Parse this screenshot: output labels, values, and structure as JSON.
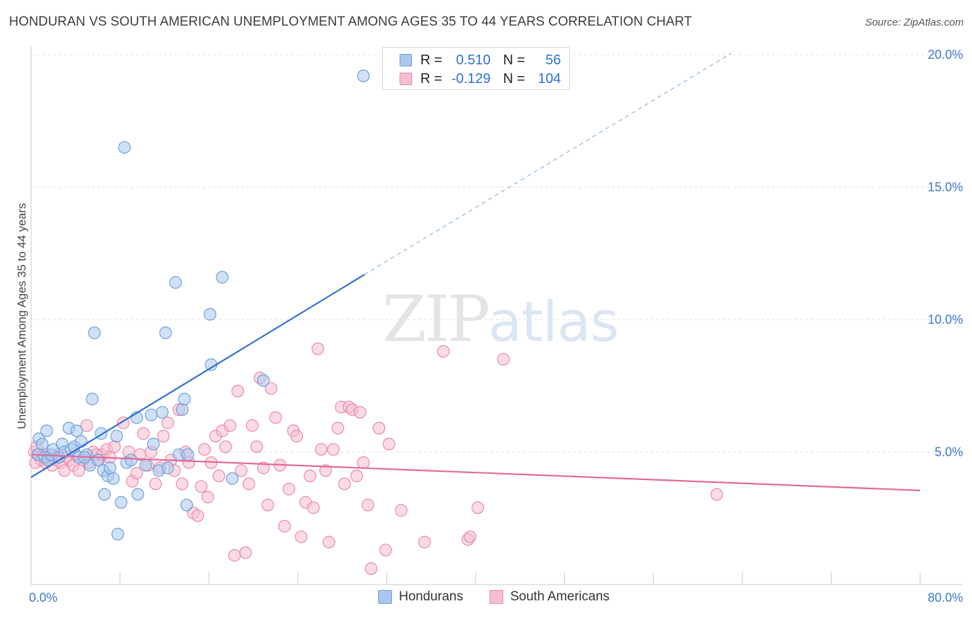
{
  "header": {
    "title": "HONDURAN VS SOUTH AMERICAN UNEMPLOYMENT AMONG AGES 35 TO 44 YEARS CORRELATION CHART",
    "source": "Source: ZipAtlas.com"
  },
  "watermark": {
    "zip": "ZIP",
    "atlas": "atlas"
  },
  "legend": {
    "rows": [
      {
        "r_label": "R =",
        "r_value": "0.510",
        "n_label": "N =",
        "n_value": "56"
      },
      {
        "r_label": "R =",
        "r_value": "-0.129",
        "n_label": "N =",
        "n_value": "104"
      }
    ]
  },
  "bottom_legend": {
    "hondurans": "Hondurans",
    "south_americans": "South Americans"
  },
  "chart_data": {
    "type": "scatter",
    "title": "HONDURAN VS SOUTH AMERICAN UNEMPLOYMENT AMONG AGES 35 TO 44 YEARS CORRELATION CHART",
    "xlabel": "",
    "ylabel": "Unemployment Among Ages 35 to 44 years",
    "xlim": [
      0,
      80
    ],
    "ylim": [
      0,
      20
    ],
    "x_ticks": [
      "0.0%",
      "80.0%"
    ],
    "y_ticks": [
      {
        "value": 5,
        "label": "5.0%"
      },
      {
        "value": 10,
        "label": "10.0%"
      },
      {
        "value": 15,
        "label": "15.0%"
      },
      {
        "value": 20,
        "label": "20.0%"
      }
    ],
    "colors": {
      "hondurans_fill": "#a9c8ef",
      "hondurans_stroke": "#6e9fdc",
      "hondurans_line": "#2f6fd1",
      "south_fill": "#f6bed0",
      "south_stroke": "#e88aab",
      "south_line": "#e3699a"
    },
    "series": [
      {
        "name": "Hondurans",
        "points": [
          [
            0.6,
            4.9
          ],
          [
            0.7,
            5.5
          ],
          [
            1.2,
            4.8
          ],
          [
            1.4,
            5.8
          ],
          [
            1.0,
            5.3
          ],
          [
            1.5,
            4.7
          ],
          [
            1.8,
            4.9
          ],
          [
            2.0,
            5.1
          ],
          [
            2.5,
            4.8
          ],
          [
            2.8,
            5.3
          ],
          [
            3.0,
            5.0
          ],
          [
            3.6,
            5.1
          ],
          [
            3.4,
            5.9
          ],
          [
            3.9,
            5.2
          ],
          [
            4.3,
            4.8
          ],
          [
            4.5,
            5.4
          ],
          [
            4.1,
            5.8
          ],
          [
            5.0,
            4.9
          ],
          [
            5.3,
            4.5
          ],
          [
            4.8,
            4.8
          ],
          [
            5.5,
            7.0
          ],
          [
            5.7,
            9.5
          ],
          [
            6.0,
            4.7
          ],
          [
            6.3,
            5.7
          ],
          [
            6.5,
            4.3
          ],
          [
            6.9,
            4.1
          ],
          [
            6.6,
            3.4
          ],
          [
            7.1,
            4.4
          ],
          [
            7.4,
            4.0
          ],
          [
            7.7,
            5.6
          ],
          [
            7.8,
            1.9
          ],
          [
            8.1,
            3.1
          ],
          [
            8.4,
            16.5
          ],
          [
            8.6,
            4.6
          ],
          [
            9.0,
            4.7
          ],
          [
            9.5,
            6.3
          ],
          [
            9.6,
            3.4
          ],
          [
            10.3,
            4.5
          ],
          [
            10.8,
            6.4
          ],
          [
            11.0,
            5.3
          ],
          [
            11.5,
            4.3
          ],
          [
            11.8,
            6.5
          ],
          [
            12.1,
            9.5
          ],
          [
            12.3,
            4.4
          ],
          [
            13.0,
            11.4
          ],
          [
            13.3,
            4.9
          ],
          [
            13.6,
            6.6
          ],
          [
            13.8,
            7.0
          ],
          [
            14.0,
            3.0
          ],
          [
            14.1,
            4.9
          ],
          [
            16.1,
            10.2
          ],
          [
            16.2,
            8.3
          ],
          [
            17.2,
            11.6
          ],
          [
            18.1,
            4.0
          ],
          [
            20.9,
            7.7
          ],
          [
            29.9,
            19.2
          ]
        ]
      },
      {
        "name": "South Americans",
        "points": [
          [
            0.3,
            5.0
          ],
          [
            0.4,
            4.6
          ],
          [
            0.5,
            5.2
          ],
          [
            0.7,
            4.9
          ],
          [
            0.9,
            4.7
          ],
          [
            1.1,
            4.9
          ],
          [
            1.3,
            4.6
          ],
          [
            1.6,
            4.8
          ],
          [
            1.9,
            4.5
          ],
          [
            2.2,
            4.7
          ],
          [
            2.4,
            4.9
          ],
          [
            2.7,
            4.6
          ],
          [
            3.0,
            4.3
          ],
          [
            3.2,
            4.8
          ],
          [
            3.5,
            4.7
          ],
          [
            3.8,
            4.5
          ],
          [
            4.0,
            4.9
          ],
          [
            4.3,
            4.3
          ],
          [
            4.7,
            4.7
          ],
          [
            5.0,
            6.0
          ],
          [
            5.2,
            4.6
          ],
          [
            5.6,
            5.0
          ],
          [
            5.9,
            4.9
          ],
          [
            6.1,
            4.7
          ],
          [
            6.4,
            4.9
          ],
          [
            6.8,
            5.1
          ],
          [
            7.1,
            4.8
          ],
          [
            7.5,
            5.2
          ],
          [
            8.3,
            6.1
          ],
          [
            8.8,
            5.0
          ],
          [
            9.1,
            3.9
          ],
          [
            9.5,
            4.2
          ],
          [
            9.8,
            4.9
          ],
          [
            10.1,
            5.7
          ],
          [
            10.5,
            4.5
          ],
          [
            10.8,
            5.0
          ],
          [
            11.2,
            3.8
          ],
          [
            11.6,
            4.4
          ],
          [
            11.9,
            5.6
          ],
          [
            12.3,
            6.1
          ],
          [
            12.6,
            4.7
          ],
          [
            12.9,
            4.3
          ],
          [
            13.3,
            6.6
          ],
          [
            13.6,
            3.8
          ],
          [
            13.9,
            5.0
          ],
          [
            14.2,
            4.6
          ],
          [
            14.6,
            2.7
          ],
          [
            15.0,
            2.6
          ],
          [
            15.3,
            3.7
          ],
          [
            15.6,
            5.1
          ],
          [
            15.9,
            3.3
          ],
          [
            16.2,
            4.6
          ],
          [
            16.6,
            5.6
          ],
          [
            16.9,
            4.1
          ],
          [
            17.2,
            5.8
          ],
          [
            17.5,
            5.2
          ],
          [
            17.9,
            6.0
          ],
          [
            18.3,
            1.1
          ],
          [
            18.6,
            7.3
          ],
          [
            18.9,
            4.3
          ],
          [
            19.3,
            1.2
          ],
          [
            19.6,
            3.8
          ],
          [
            19.9,
            6.0
          ],
          [
            20.3,
            5.2
          ],
          [
            20.6,
            7.8
          ],
          [
            20.9,
            4.4
          ],
          [
            21.3,
            3.0
          ],
          [
            21.6,
            7.4
          ],
          [
            22.0,
            6.3
          ],
          [
            22.4,
            4.5
          ],
          [
            22.8,
            2.2
          ],
          [
            23.2,
            3.6
          ],
          [
            23.6,
            5.8
          ],
          [
            23.9,
            5.6
          ],
          [
            24.3,
            1.8
          ],
          [
            24.7,
            3.1
          ],
          [
            25.1,
            4.1
          ],
          [
            25.4,
            2.9
          ],
          [
            25.8,
            8.9
          ],
          [
            26.1,
            5.1
          ],
          [
            26.5,
            4.3
          ],
          [
            26.8,
            1.6
          ],
          [
            27.2,
            5.1
          ],
          [
            27.6,
            5.9
          ],
          [
            27.9,
            6.7
          ],
          [
            28.2,
            3.8
          ],
          [
            28.6,
            6.7
          ],
          [
            28.9,
            6.6
          ],
          [
            29.3,
            4.1
          ],
          [
            29.6,
            6.5
          ],
          [
            29.9,
            4.6
          ],
          [
            30.3,
            3.0
          ],
          [
            30.6,
            0.6
          ],
          [
            31.3,
            5.9
          ],
          [
            31.9,
            1.3
          ],
          [
            32.2,
            5.3
          ],
          [
            33.3,
            2.8
          ],
          [
            35.4,
            1.6
          ],
          [
            37.1,
            8.8
          ],
          [
            39.3,
            1.7
          ],
          [
            39.5,
            1.8
          ],
          [
            40.2,
            2.9
          ],
          [
            42.5,
            8.5
          ],
          [
            61.7,
            3.4
          ]
        ]
      }
    ],
    "trendlines": [
      {
        "series": "Hondurans",
        "x": [
          0,
          30
        ],
        "y": [
          4.05,
          11.7
        ],
        "extended_to": [
          63,
          20.05
        ],
        "dashed_extension": true
      },
      {
        "series": "South Americans",
        "x": [
          0,
          80
        ],
        "y": [
          4.9,
          3.55
        ]
      }
    ]
  }
}
